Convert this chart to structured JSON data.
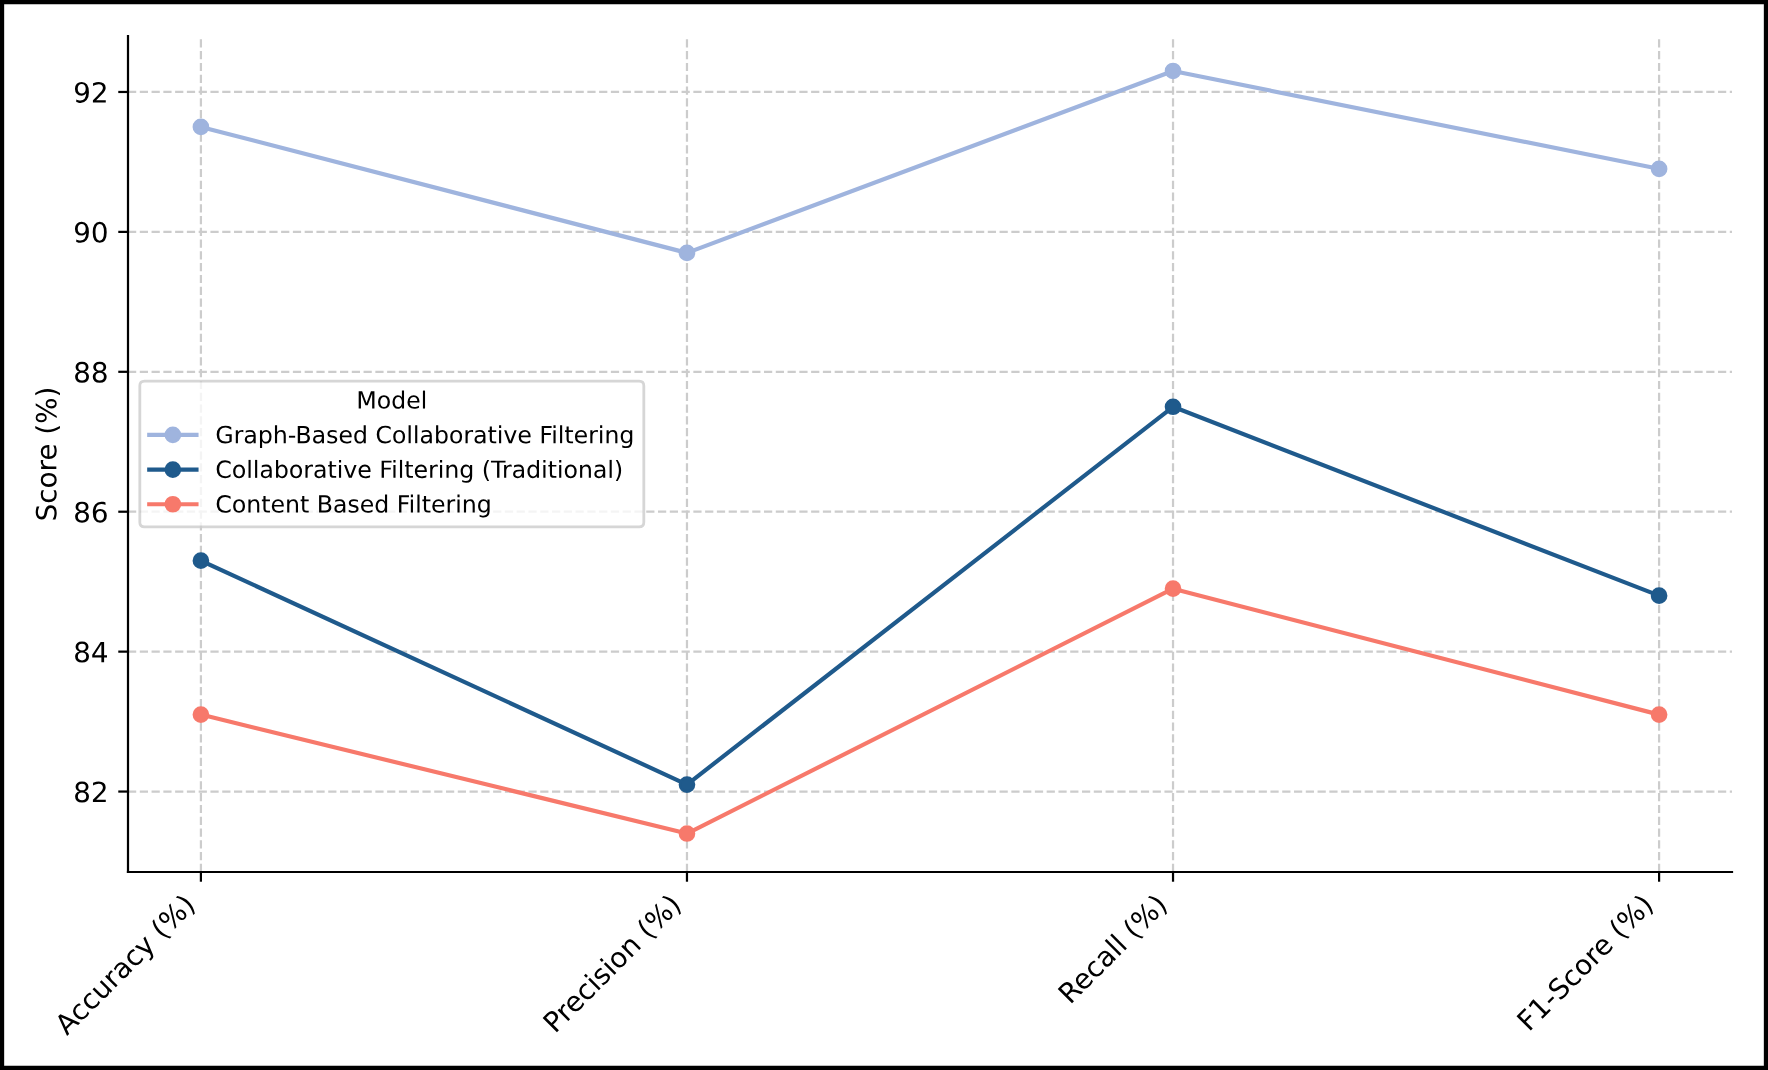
{
  "chart_data": {
    "type": "line",
    "ylabel": "Score (%)",
    "legend_title": "Model",
    "categories": [
      "Accuracy (%)",
      "Precision (%)",
      "Recall (%)",
      "F1-Score (%)"
    ],
    "series": [
      {
        "name": "Graph-Based Collaborative Filtering",
        "color": "#9fb4de",
        "values": [
          91.5,
          89.7,
          92.3,
          90.9
        ]
      },
      {
        "name": "Collaborative Filtering (Traditional)",
        "color": "#1f5a8c",
        "values": [
          85.3,
          82.1,
          87.5,
          84.8
        ]
      },
      {
        "name": "Content Based Filtering",
        "color": "#f7796b",
        "values": [
          83.1,
          81.4,
          84.9,
          83.1
        ]
      }
    ],
    "ylim": [
      80.85,
      92.8
    ],
    "yticks": [
      82,
      84,
      86,
      88,
      90,
      92
    ],
    "grid": true,
    "legend": "center left",
    "marker": "circle",
    "line_style": "solid"
  }
}
